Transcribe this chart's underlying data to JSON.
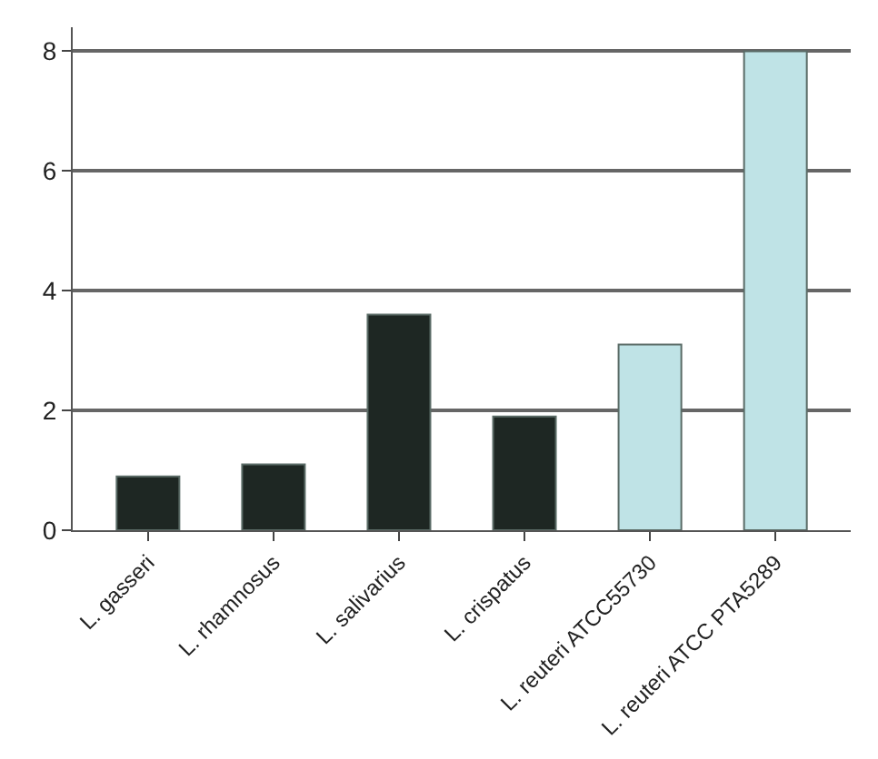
{
  "chart_data": {
    "type": "bar",
    "categories": [
      "L. gasseri",
      "L. rhamnosus",
      "L. salivarius",
      "L. crispatus",
      "L. reuteri ATCC55730",
      "L. reuteri ATCC PTA5289"
    ],
    "values": [
      0.9,
      1.1,
      3.6,
      1.9,
      3.1,
      8.0
    ],
    "colors": [
      "#1e2723",
      "#1e2723",
      "#1e2723",
      "#1e2723",
      "#bfe3e6",
      "#bfe3e6"
    ],
    "ylim": [
      0,
      8.4
    ],
    "yticks": [
      0,
      2,
      4,
      6,
      8
    ],
    "grid": "y"
  }
}
